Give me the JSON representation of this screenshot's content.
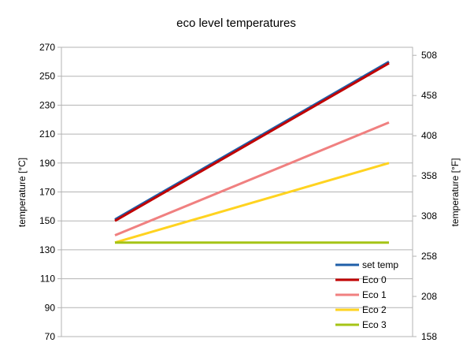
{
  "chart_data": {
    "type": "line",
    "title": "eco level temperatures",
    "ylabel": "temperature [°C]",
    "y2label": "temperature [°F]",
    "ylim": [
      70,
      270
    ],
    "y_ticks": [
      "270",
      "250",
      "230",
      "210",
      "190",
      "170",
      "150",
      "130",
      "110",
      "90",
      "70"
    ],
    "y2lim": [
      158,
      518
    ],
    "y2_ticks": [
      "508",
      "458",
      "408",
      "358",
      "308",
      "258",
      "208",
      "158"
    ],
    "x": [
      0,
      1
    ],
    "grid": true,
    "legend_position": "bottom-right",
    "series": [
      {
        "name": "set temp",
        "values": [
          151,
          260
        ],
        "color": "#1f5fa8"
      },
      {
        "name": "Eco 0",
        "values": [
          150,
          259
        ],
        "color": "#c00000"
      },
      {
        "name": "Eco 1",
        "values": [
          140,
          218
        ],
        "color": "#f08080"
      },
      {
        "name": "Eco 2",
        "values": [
          135,
          190
        ],
        "color": "#ffd320"
      },
      {
        "name": "Eco 3",
        "values": [
          135,
          135
        ],
        "color": "#a5c416"
      }
    ]
  }
}
